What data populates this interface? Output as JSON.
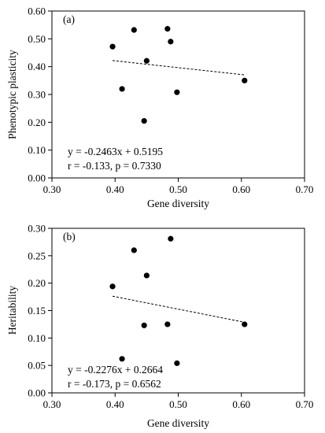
{
  "chart_data": [
    {
      "type": "scatter",
      "panel_label": "(a)",
      "xlabel": "Gene diversity",
      "ylabel": "Phenotypic plasticity",
      "xlim": [
        0.3,
        0.7
      ],
      "ylim": [
        0.0,
        0.6
      ],
      "xticks": [
        "0.30",
        "0.40",
        "0.50",
        "0.60",
        "0.70"
      ],
      "yticks": [
        "0.00",
        "0.10",
        "0.20",
        "0.30",
        "0.40",
        "0.50",
        "0.60"
      ],
      "points": [
        {
          "x": 0.396,
          "y": 0.472
        },
        {
          "x": 0.411,
          "y": 0.32
        },
        {
          "x": 0.43,
          "y": 0.532
        },
        {
          "x": 0.446,
          "y": 0.205
        },
        {
          "x": 0.45,
          "y": 0.421
        },
        {
          "x": 0.483,
          "y": 0.536
        },
        {
          "x": 0.488,
          "y": 0.49
        },
        {
          "x": 0.498,
          "y": 0.308
        },
        {
          "x": 0.605,
          "y": 0.35
        }
      ],
      "trendline": {
        "slope": -0.2463,
        "intercept": 0.5195,
        "x_range": [
          0.396,
          0.605
        ],
        "style": "dashed"
      },
      "equation": "y = -0.2463x + 0.5195",
      "stats": "r = -0.133, p = 0.7330",
      "grid": false
    },
    {
      "type": "scatter",
      "panel_label": "(b)",
      "xlabel": "Gene diversity",
      "ylabel": "Heritability",
      "xlim": [
        0.3,
        0.7
      ],
      "ylim": [
        0.0,
        0.3
      ],
      "xticks": [
        "0.30",
        "0.40",
        "0.50",
        "0.60",
        "0.70"
      ],
      "yticks": [
        "0.00",
        "0.05",
        "0.10",
        "0.15",
        "0.20",
        "0.25",
        "0.30"
      ],
      "points": [
        {
          "x": 0.396,
          "y": 0.194
        },
        {
          "x": 0.411,
          "y": 0.062
        },
        {
          "x": 0.43,
          "y": 0.26
        },
        {
          "x": 0.446,
          "y": 0.123
        },
        {
          "x": 0.45,
          "y": 0.214
        },
        {
          "x": 0.483,
          "y": 0.125
        },
        {
          "x": 0.488,
          "y": 0.281
        },
        {
          "x": 0.498,
          "y": 0.054
        },
        {
          "x": 0.605,
          "y": 0.125
        }
      ],
      "trendline": {
        "slope": -0.2276,
        "intercept": 0.2664,
        "x_range": [
          0.396,
          0.605
        ],
        "style": "dashed"
      },
      "equation": "y = -0.2276x + 0.2664",
      "stats": "r = -0.173, p = 0.6562",
      "grid": false
    }
  ]
}
